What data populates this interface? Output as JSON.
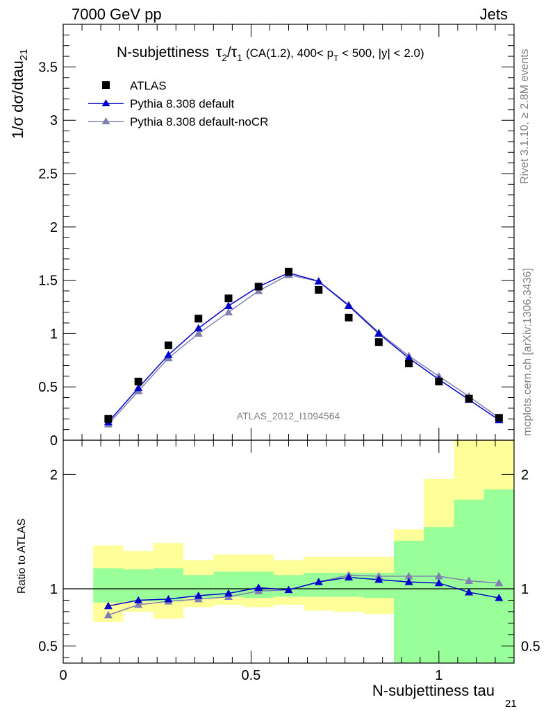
{
  "header": {
    "left": "7000 GeV pp",
    "right": "Jets"
  },
  "title": {
    "main": "N-subjettiness",
    "tau2": "τ",
    "tau2_sub": "2",
    "slash": "/",
    "tau1": "τ",
    "tau1_sub": "1",
    "condition_part1": "(CA(1.2), 400< p",
    "condition_sub": "T",
    "condition_part2": " < 500, |y| < 2.0)"
  },
  "side_text": {
    "rivet": "Rivet 3.1.10, ≥ 2.8M events",
    "mcplots": "mcplots.cern.ch [arXiv:1306.3436]"
  },
  "watermark": "ATLAS_2012_I1094564",
  "colors": {
    "data": "#000000",
    "default": "#0000cc",
    "nocr": "#7f7fb2",
    "band_outer": "#ffff99",
    "band_inner": "#99ff99"
  },
  "chart_data": [
    {
      "type": "line",
      "ylabel": "1/σ dσ/dtau",
      "ylabel_sub": "21",
      "xlim": [
        0,
        1.2
      ],
      "ylim": [
        0,
        3.9
      ],
      "y_ticks": [
        {
          "v": 0,
          "label": "0"
        },
        {
          "v": 0.5,
          "label": "0.5"
        },
        {
          "v": 1,
          "label": "1"
        },
        {
          "v": 1.5,
          "label": "1.5"
        },
        {
          "v": 2,
          "label": "2"
        },
        {
          "v": 2.5,
          "label": "2.5"
        },
        {
          "v": 3,
          "label": "3"
        },
        {
          "v": 3.5,
          "label": "3.5"
        }
      ],
      "x": [
        0.12,
        0.2,
        0.28,
        0.36,
        0.44,
        0.52,
        0.6,
        0.68,
        0.76,
        0.84,
        0.92,
        1.0,
        1.08,
        1.16
      ],
      "series": [
        {
          "name": "ATLAS",
          "marker": "square",
          "values": [
            0.2,
            0.55,
            0.89,
            1.14,
            1.33,
            1.44,
            1.58,
            1.41,
            1.15,
            0.92,
            0.72,
            0.55,
            0.39,
            0.21
          ]
        },
        {
          "name": "Pythia 8.308 default",
          "marker": "triangle",
          "values": [
            0.17,
            0.49,
            0.8,
            1.05,
            1.26,
            1.44,
            1.57,
            1.49,
            1.26,
            1.0,
            0.77,
            0.57,
            0.38,
            0.19
          ]
        },
        {
          "name": "Pythia 8.308 default-noCR",
          "marker": "triangle",
          "values": [
            0.15,
            0.46,
            0.77,
            1.0,
            1.2,
            1.4,
            1.55,
            1.49,
            1.27,
            1.01,
            0.79,
            0.6,
            0.41,
            0.21
          ]
        }
      ]
    },
    {
      "type": "line",
      "ylabel": "Ratio to ATLAS",
      "xlabel": "N-subjettiness tau",
      "xlabel_sub": "21",
      "xlim": [
        0,
        1.2
      ],
      "ylim": [
        0.35,
        2.3
      ],
      "x_ticks": [
        {
          "v": 0,
          "label": "0"
        },
        {
          "v": 0.5,
          "label": "0.5"
        },
        {
          "v": 1,
          "label": "1"
        }
      ],
      "y_ticks": [
        {
          "v": 0.5,
          "label": "0.5"
        },
        {
          "v": 1,
          "label": "1"
        },
        {
          "v": 2,
          "label": "2"
        }
      ],
      "bands": {
        "bin_edges": [
          0.08,
          0.16,
          0.24,
          0.32,
          0.4,
          0.48,
          0.56,
          0.64,
          0.72,
          0.8,
          0.88,
          0.96,
          1.04,
          1.12,
          1.2
        ],
        "inner_lo": [
          0.88,
          0.89,
          0.89,
          0.92,
          0.93,
          0.92,
          0.93,
          0.93,
          0.93,
          0.92,
          0.33,
          0.35,
          0.34,
          0.33
        ],
        "inner_hi": [
          1.18,
          1.17,
          1.18,
          1.12,
          1.15,
          1.15,
          1.12,
          1.14,
          1.14,
          1.14,
          1.42,
          1.54,
          1.78,
          1.87
        ],
        "outer_lo": [
          0.71,
          0.8,
          0.74,
          0.84,
          0.86,
          0.84,
          0.86,
          0.81,
          0.8,
          0.78,
          0.35,
          0.4,
          0.4,
          0.35
        ],
        "outer_hi": [
          1.38,
          1.33,
          1.4,
          1.25,
          1.3,
          1.3,
          1.25,
          1.28,
          1.28,
          1.28,
          1.52,
          1.96,
          2.35,
          2.35
        ]
      },
      "series": [
        {
          "name": "Pythia 8.308 default",
          "marker": "triangle",
          "values": [
            0.85,
            0.9,
            0.91,
            0.94,
            0.96,
            1.01,
            0.99,
            1.06,
            1.1,
            1.08,
            1.06,
            1.05,
            0.97,
            0.92
          ]
        },
        {
          "name": "Pythia 8.308 default-noCR",
          "marker": "triangle",
          "values": [
            0.77,
            0.86,
            0.89,
            0.91,
            0.93,
            0.98,
            0.99,
            1.06,
            1.12,
            1.11,
            1.11,
            1.11,
            1.07,
            1.05
          ]
        }
      ]
    }
  ]
}
